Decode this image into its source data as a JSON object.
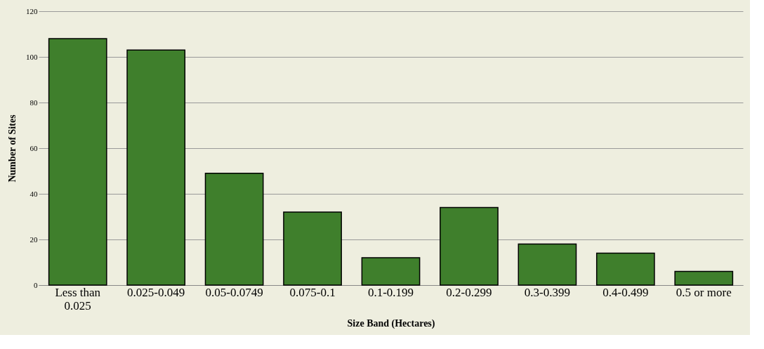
{
  "chart_data": {
    "type": "bar",
    "xlabel": "Size Band (Hectares)",
    "ylabel": "Number of Sites",
    "categories": [
      "Less than 0.025",
      "0.025-0.049",
      "0.05-0.0749",
      "0.075-0.1",
      "0.1-0.199",
      "0.2-0.299",
      "0.3-0.399",
      "0.4-0.499",
      "0.5 or more"
    ],
    "values": [
      108,
      103,
      49,
      32,
      12,
      34,
      18,
      14,
      6
    ],
    "color": "#3f7f2c",
    "ylim": [
      0,
      120
    ],
    "yticks": [
      0,
      20,
      40,
      60,
      80,
      100,
      120
    ],
    "grid": "y"
  }
}
